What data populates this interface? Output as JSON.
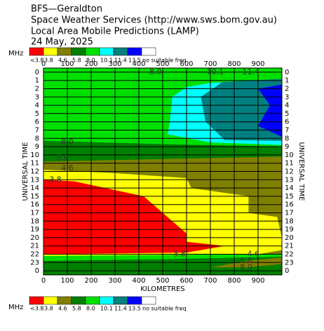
{
  "chart_data": {
    "type": "contour",
    "title": [
      "BFS—Geraldton",
      "Space Weather Services (http://www.sws.bom.gov.au)",
      "Local Area Mobile Predictions (LAMP)",
      "24 May, 2025"
    ],
    "legend_unit": "MHz",
    "levels": [
      "<3.8",
      "3.8",
      "4.6",
      "5.8",
      "8.0",
      "10.1",
      "11.4",
      "13.5",
      "no suitable freq"
    ],
    "colors": [
      "#ff0000",
      "#ffff00",
      "#808000",
      "#008000",
      "#00e000",
      "#00ffff",
      "#008080",
      "#0000ff",
      "#ffffff"
    ],
    "xlabel": "KILOMETRES",
    "ylabel": "UNIVERSAL TIME",
    "xlim": [
      0,
      1000
    ],
    "xticks": [
      0,
      100,
      200,
      300,
      400,
      500,
      600,
      700,
      800,
      900
    ],
    "ylim": [
      -0.5,
      24.5
    ],
    "yticks": [
      0,
      1,
      2,
      3,
      4,
      5,
      6,
      7,
      8,
      9,
      10,
      11,
      12,
      13,
      14,
      15,
      16,
      17,
      18,
      19,
      20,
      21,
      22,
      23,
      {
        "value": 24,
        "label": "0"
      }
    ],
    "grid": true,
    "regions": [
      {
        "level": 4,
        "points": [
          [
            0,
            -0.5
          ],
          [
            1000,
            -0.5
          ],
          [
            1000,
            24.5
          ],
          [
            0,
            24.5
          ]
        ]
      },
      {
        "level": 3,
        "points": [
          [
            0,
            8.3
          ],
          [
            500,
            8.7
          ],
          [
            1000,
            9
          ],
          [
            1000,
            10.3
          ],
          [
            500,
            10.6
          ],
          [
            0,
            11.2
          ]
        ]
      },
      {
        "level": 2,
        "points": [
          [
            0,
            10.8
          ],
          [
            500,
            10.5
          ],
          [
            1000,
            10.2
          ],
          [
            1000,
            22
          ],
          [
            0,
            22
          ]
        ]
      },
      {
        "level": 1,
        "points": [
          [
            0,
            11.8
          ],
          [
            300,
            12.2
          ],
          [
            600,
            12.8
          ],
          [
            620,
            14
          ],
          [
            860,
            15
          ],
          [
            860,
            17
          ],
          [
            980,
            17.5
          ],
          [
            1000,
            20
          ],
          [
            1000,
            21.5
          ],
          [
            900,
            22
          ],
          [
            0,
            22.2
          ]
        ]
      },
      {
        "level": 0,
        "points": [
          [
            0,
            13
          ],
          [
            130,
            13.2
          ],
          [
            420,
            15
          ],
          [
            600,
            19.5
          ],
          [
            600,
            20.5
          ],
          [
            760,
            21
          ],
          [
            600,
            21.8
          ],
          [
            0,
            22
          ]
        ]
      },
      {
        "level": 3,
        "points": [
          [
            0,
            22.8
          ],
          [
            500,
            22.6
          ],
          [
            1000,
            22.3
          ],
          [
            1000,
            24.5
          ],
          [
            0,
            24.5
          ]
        ]
      },
      {
        "level": 2,
        "points": [
          [
            700,
            23.6
          ],
          [
            850,
            22.8
          ],
          [
            1000,
            22.4
          ],
          [
            1000,
            23.2
          ],
          [
            850,
            23.6
          ]
        ]
      },
      {
        "level": 5,
        "points": [
          [
            600,
            1.8
          ],
          [
            700,
            1.3
          ],
          [
            1000,
            0.9
          ],
          [
            1000,
            8.8
          ],
          [
            700,
            8.5
          ],
          [
            520,
            7.5
          ],
          [
            530,
            6
          ],
          [
            540,
            3
          ]
        ]
      },
      {
        "level": 6,
        "points": [
          [
            750,
            1.2
          ],
          [
            1000,
            0.8
          ],
          [
            1000,
            8.3
          ],
          [
            760,
            8.2
          ],
          [
            680,
            6
          ],
          [
            660,
            3
          ]
        ]
      },
      {
        "level": 7,
        "points": [
          [
            900,
            2
          ],
          [
            1000,
            1.5
          ],
          [
            1000,
            7.8
          ],
          [
            900,
            6.5
          ],
          [
            950,
            4
          ]
        ]
      }
    ],
    "annotations": [
      {
        "text": "8.0",
        "x": 470,
        "y": 0
      },
      {
        "text": "10.1",
        "x": 720,
        "y": 0
      },
      {
        "text": "11.4",
        "x": 870,
        "y": 0
      },
      {
        "text": "8.0",
        "x": 100,
        "y": 8.5
      },
      {
        "text": "5.8",
        "x": 80,
        "y": 10.4
      },
      {
        "text": "4.6",
        "x": 100,
        "y": 11.6
      },
      {
        "text": "3.8",
        "x": 50,
        "y": 13
      },
      {
        "text": "3.8",
        "x": 570,
        "y": 22
      },
      {
        "text": "4.6",
        "x": 880,
        "y": 22
      },
      {
        "text": "5.8",
        "x": 850,
        "y": 22.8
      },
      {
        "text": "8.0",
        "x": 850,
        "y": 23.6
      }
    ]
  }
}
